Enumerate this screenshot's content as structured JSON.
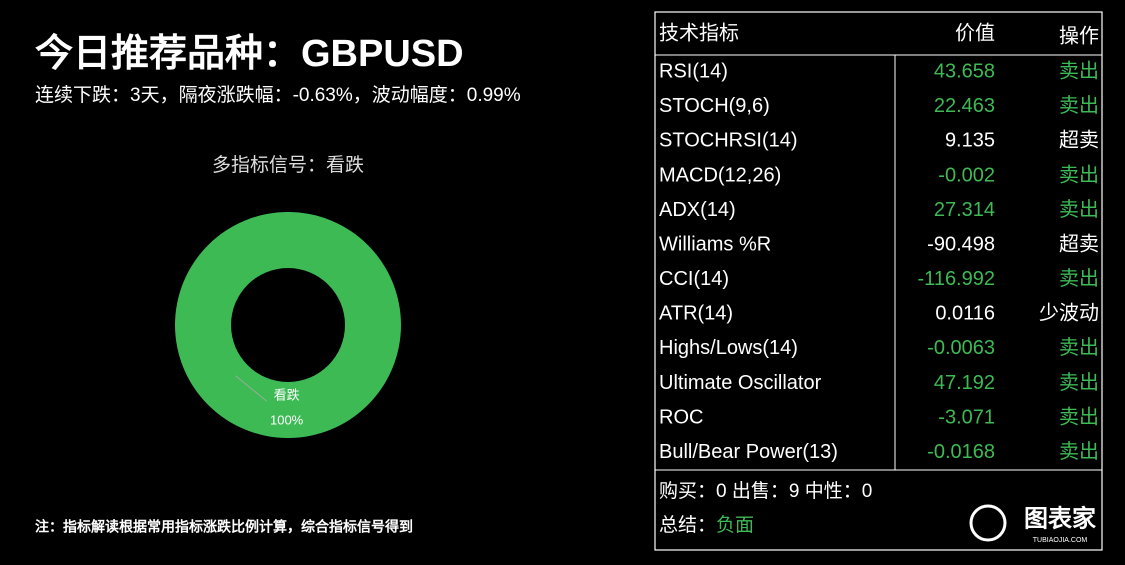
{
  "header": {
    "title": "今日推荐品种：GBPUSD",
    "subtitle": "连续下跌：3天，隔夜涨跌幅：-0.63%，波动幅度：0.99%"
  },
  "chart_data": {
    "type": "pie",
    "title": "多指标信号：看跌",
    "categories": [
      "看跌"
    ],
    "values": [
      100
    ],
    "value_labels": [
      "100%"
    ],
    "colors": [
      "#3dba54"
    ],
    "donut": true
  },
  "note": "注：指标解读根据常用指标涨跌比例计算，综合指标信号得到",
  "table": {
    "columns": [
      "技术指标",
      "价值",
      "操作"
    ],
    "rows": [
      {
        "name": "RSI(14)",
        "value": "43.658",
        "action": "卖出",
        "color": "#3dba54"
      },
      {
        "name": "STOCH(9,6)",
        "value": "22.463",
        "action": "卖出",
        "color": "#3dba54"
      },
      {
        "name": "STOCHRSI(14)",
        "value": "9.135",
        "action": "超卖",
        "color": "#ffffff"
      },
      {
        "name": "MACD(12,26)",
        "value": "-0.002",
        "action": "卖出",
        "color": "#3dba54"
      },
      {
        "name": "ADX(14)",
        "value": "27.314",
        "action": "卖出",
        "color": "#3dba54"
      },
      {
        "name": "Williams %R",
        "value": "-90.498",
        "action": "超卖",
        "color": "#ffffff"
      },
      {
        "name": "CCI(14)",
        "value": "-116.992",
        "action": "卖出",
        "color": "#3dba54"
      },
      {
        "name": "ATR(14)",
        "value": "0.0116",
        "action": "少波动",
        "color": "#ffffff"
      },
      {
        "name": "Highs/Lows(14)",
        "value": "-0.0063",
        "action": "卖出",
        "color": "#3dba54"
      },
      {
        "name": "Ultimate Oscillator",
        "value": "47.192",
        "action": "卖出",
        "color": "#3dba54"
      },
      {
        "name": "ROC",
        "value": "-3.071",
        "action": "卖出",
        "color": "#3dba54"
      },
      {
        "name": "Bull/Bear Power(13)",
        "value": "-0.0168",
        "action": "卖出",
        "color": "#3dba54"
      }
    ],
    "counts": "购买：0 出售：9 中性：0",
    "summary_label": "总结：",
    "summary_value": "负面",
    "summary_color": "#3dba54"
  },
  "brand": {
    "name": "图表家",
    "url": "TUBIAOJIA.COM"
  }
}
